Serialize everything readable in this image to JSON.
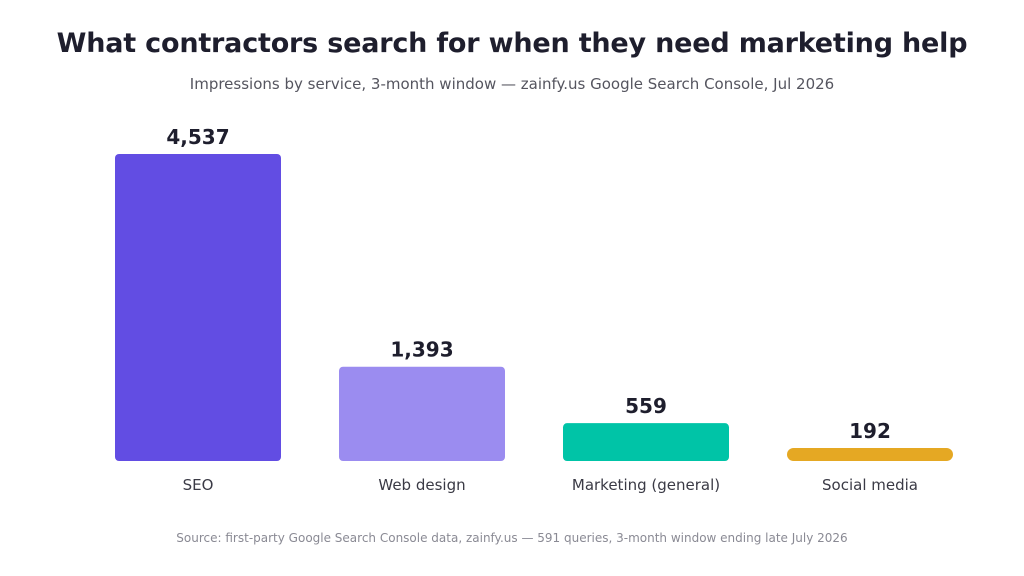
{
  "chart_data": {
    "type": "bar",
    "title": "What contractors search for when they need marketing help",
    "subtitle": "Impressions by service, 3-month window — zainfy.us Google Search Console, Jul 2026",
    "categories": [
      "SEO",
      "Web design",
      "Marketing (general)",
      "Social media"
    ],
    "values": [
      4537,
      1393,
      559,
      192
    ],
    "value_labels": [
      "4,537",
      "1,393",
      "559",
      "192"
    ],
    "colors": [
      "#624de3",
      "#9b8cf0",
      "#00c4a7",
      "#e5a823"
    ],
    "xlabel": "",
    "ylabel": "",
    "ylim": [
      0,
      4537
    ],
    "grid": false,
    "legend": "none",
    "source": "Source: first-party Google Search Console data, zainfy.us — 591 queries, 3-month window ending late July 2026"
  }
}
